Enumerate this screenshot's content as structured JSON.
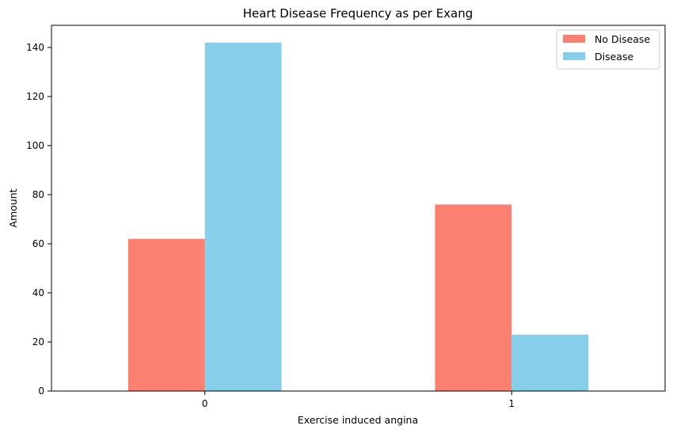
{
  "chart_data": {
    "type": "bar",
    "title": "Heart Disease Frequency as per Exang",
    "xlabel": "Exercise induced angina",
    "ylabel": "Amount",
    "categories": [
      "0",
      "1"
    ],
    "series": [
      {
        "name": "No Disease",
        "color": "#fa8072",
        "values": [
          62,
          76
        ]
      },
      {
        "name": "Disease",
        "color": "#87ceeb",
        "values": [
          142,
          23
        ]
      }
    ],
    "ylim": [
      0,
      149
    ],
    "yticks": [
      0,
      20,
      40,
      60,
      80,
      100,
      120,
      140
    ],
    "grid": false,
    "legend": "top-right"
  }
}
